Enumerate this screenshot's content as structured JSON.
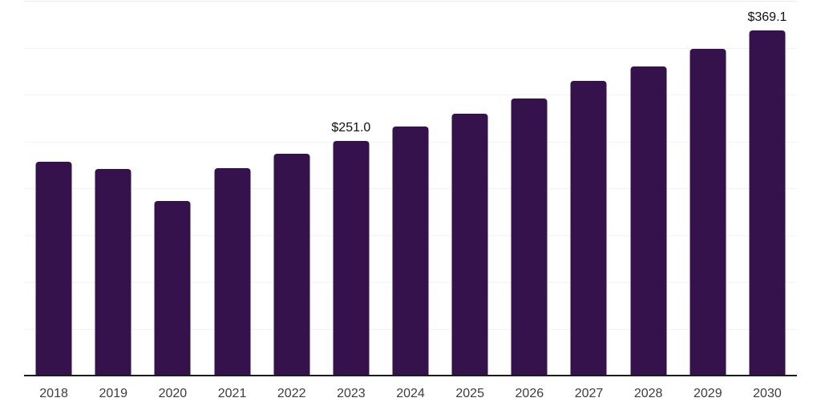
{
  "chart_data": {
    "type": "bar",
    "title": "",
    "xlabel": "",
    "ylabel": "",
    "categories": [
      "2018",
      "2019",
      "2020",
      "2021",
      "2022",
      "2023",
      "2024",
      "2025",
      "2026",
      "2027",
      "2028",
      "2029",
      "2030"
    ],
    "values": [
      229,
      221,
      187,
      222,
      238,
      251.0,
      267,
      280,
      297,
      315,
      331,
      350,
      369.1
    ],
    "data_labels": {
      "2023": "$251.0",
      "2030": "$369.1"
    },
    "ylim": [
      0,
      400
    ],
    "gridline_step": 50,
    "grid": "horizontal-light-gridlines",
    "legend": "none",
    "colors": {
      "bar": "#36124D",
      "axis_line": "#1b1b22",
      "gridline": "#f1f2f5",
      "top_gridline": "#e9ebee",
      "value_label": "#101010",
      "tick_label": "#3c3c3c",
      "background": "#ffffff"
    }
  }
}
